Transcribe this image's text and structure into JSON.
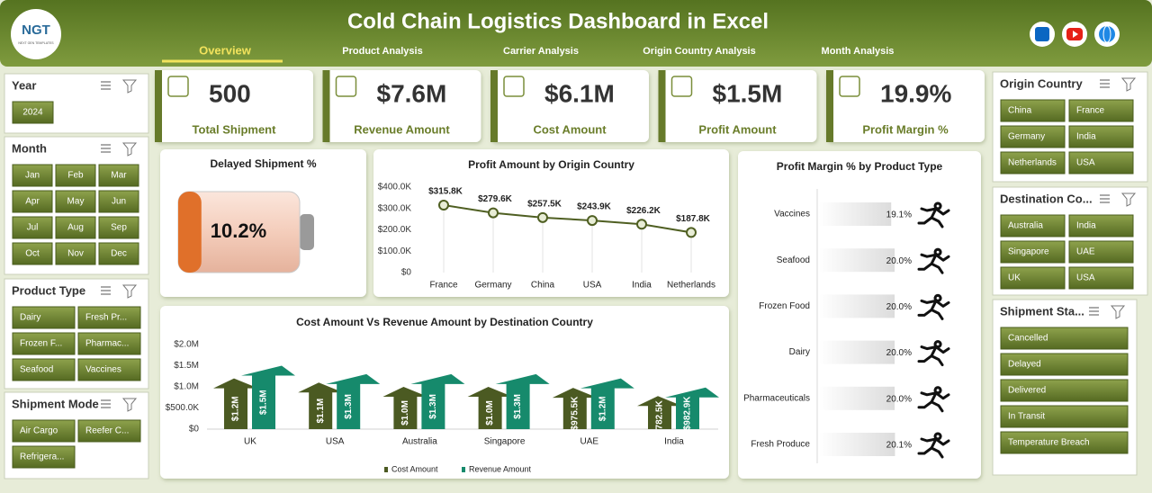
{
  "header": {
    "title": "Cold Chain Logistics Dashboard in Excel",
    "logo": "NGT",
    "logo_subtitle": "NEXT GEN TEMPLATES",
    "nav": [
      "Overview",
      "Product Analysis",
      "Carrier Analysis",
      "Origin Country Analysis",
      "Month Analysis"
    ]
  },
  "slicers": [
    {
      "title": "Year",
      "items": [
        "2024"
      ]
    },
    {
      "title": "Month",
      "items": [
        "Jan",
        "Feb",
        "Mar",
        "Apr",
        "May",
        "Jun",
        "Jul",
        "Aug",
        "Sep",
        "Oct",
        "Nov",
        "Dec"
      ]
    },
    {
      "title": "Product Type",
      "items": [
        "Dairy",
        "Fresh Pr...",
        "Frozen F...",
        "Pharmac...",
        "Seafood",
        "Vaccines"
      ]
    },
    {
      "title": "Shipment Mode",
      "items": [
        "Air Cargo",
        "Reefer C...",
        "Refrigera..."
      ]
    },
    {
      "title": "Origin Country",
      "items": [
        "China",
        "France",
        "Germany",
        "India",
        "Netherlands",
        "USA"
      ]
    },
    {
      "title": "Destination Co...",
      "items": [
        "Australia",
        "India",
        "Singapore",
        "UAE",
        "UK",
        "USA"
      ]
    },
    {
      "title": "Shipment Sta...",
      "items": [
        "Cancelled",
        "Delayed",
        "Delivered",
        "In Transit",
        "Temperature Breach"
      ]
    }
  ],
  "kpis": [
    {
      "value": "500",
      "label": "Total Shipment"
    },
    {
      "value": "$7.6M",
      "label": "Revenue Amount"
    },
    {
      "value": "$6.1M",
      "label": "Cost Amount"
    },
    {
      "value": "$1.5M",
      "label": "Profit Amount"
    },
    {
      "value": "19.9%",
      "label": "Profit Margin %"
    }
  ],
  "chart_data": [
    {
      "type": "battery",
      "title": "Delayed Shipment %",
      "values": [
        10.2
      ],
      "value_labels": [
        "10.2%"
      ],
      "color": "#e0702a"
    },
    {
      "type": "line",
      "title": "Profit Amount by Origin Country",
      "categories": [
        "France",
        "Germany",
        "China",
        "USA",
        "India",
        "Netherlands"
      ],
      "values": [
        315800,
        279600,
        257500,
        243900,
        226200,
        187800
      ],
      "value_labels": [
        "$315.8K",
        "$279.6K",
        "$257.5K",
        "$243.9K",
        "$226.2K",
        "$187.8K"
      ],
      "color": "#4f5f22",
      "ylim": [
        0,
        400000
      ],
      "yticks": [
        {
          "value": 0,
          "label": "$0"
        },
        {
          "value": 100000,
          "label": "$100.0K"
        },
        {
          "value": 200000,
          "label": "$200.0K"
        },
        {
          "value": 300000,
          "label": "$300.0K"
        },
        {
          "value": 400000,
          "label": "$400.0K"
        }
      ]
    },
    {
      "type": "hbar",
      "title": "Profit Margin % by Product Type",
      "categories": [
        "Vaccines",
        "Seafood",
        "Frozen Food",
        "Dairy",
        "Pharmaceuticals",
        "Fresh Produce"
      ],
      "values": [
        19.1,
        20.0,
        20.0,
        20.0,
        20.0,
        20.1
      ],
      "value_labels": [
        "19.1%",
        "20.0%",
        "20.0%",
        "20.0%",
        "20.0%",
        "20.1%"
      ],
      "color": "#e6e6e6"
    },
    {
      "type": "arrow",
      "title": "Cost Amount Vs Revenue Amount by Destination Country",
      "categories": [
        "UK",
        "USA",
        "Australia",
        "Singapore",
        "UAE",
        "India"
      ],
      "series": [
        {
          "name": "Cost Amount",
          "color": "#4b5a22",
          "values": [
            1200000,
            1100000,
            1000000,
            1000000,
            975500,
            782500
          ],
          "value_labels": [
            "$1.2M",
            "$1.1M",
            "$1.0M",
            "$1.0M",
            "$975.5K",
            "$782.5K"
          ]
        },
        {
          "name": "Revenue Amount",
          "color": "#168a6c",
          "values": [
            1500000,
            1300000,
            1300000,
            1300000,
            1200000,
            982900
          ],
          "value_labels": [
            "$1.5M",
            "$1.3M",
            "$1.3M",
            "$1.3M",
            "$1.2M",
            "$982.9K"
          ]
        }
      ],
      "ylim": [
        0,
        2000000
      ],
      "yticks": [
        {
          "value": 0,
          "label": "$0"
        },
        {
          "value": 500000,
          "label": "$500.0K"
        },
        {
          "value": 1000000,
          "label": "$1.0M"
        },
        {
          "value": 1500000,
          "label": "$1.5M"
        },
        {
          "value": 2000000,
          "label": "$2.0M"
        }
      ]
    }
  ]
}
